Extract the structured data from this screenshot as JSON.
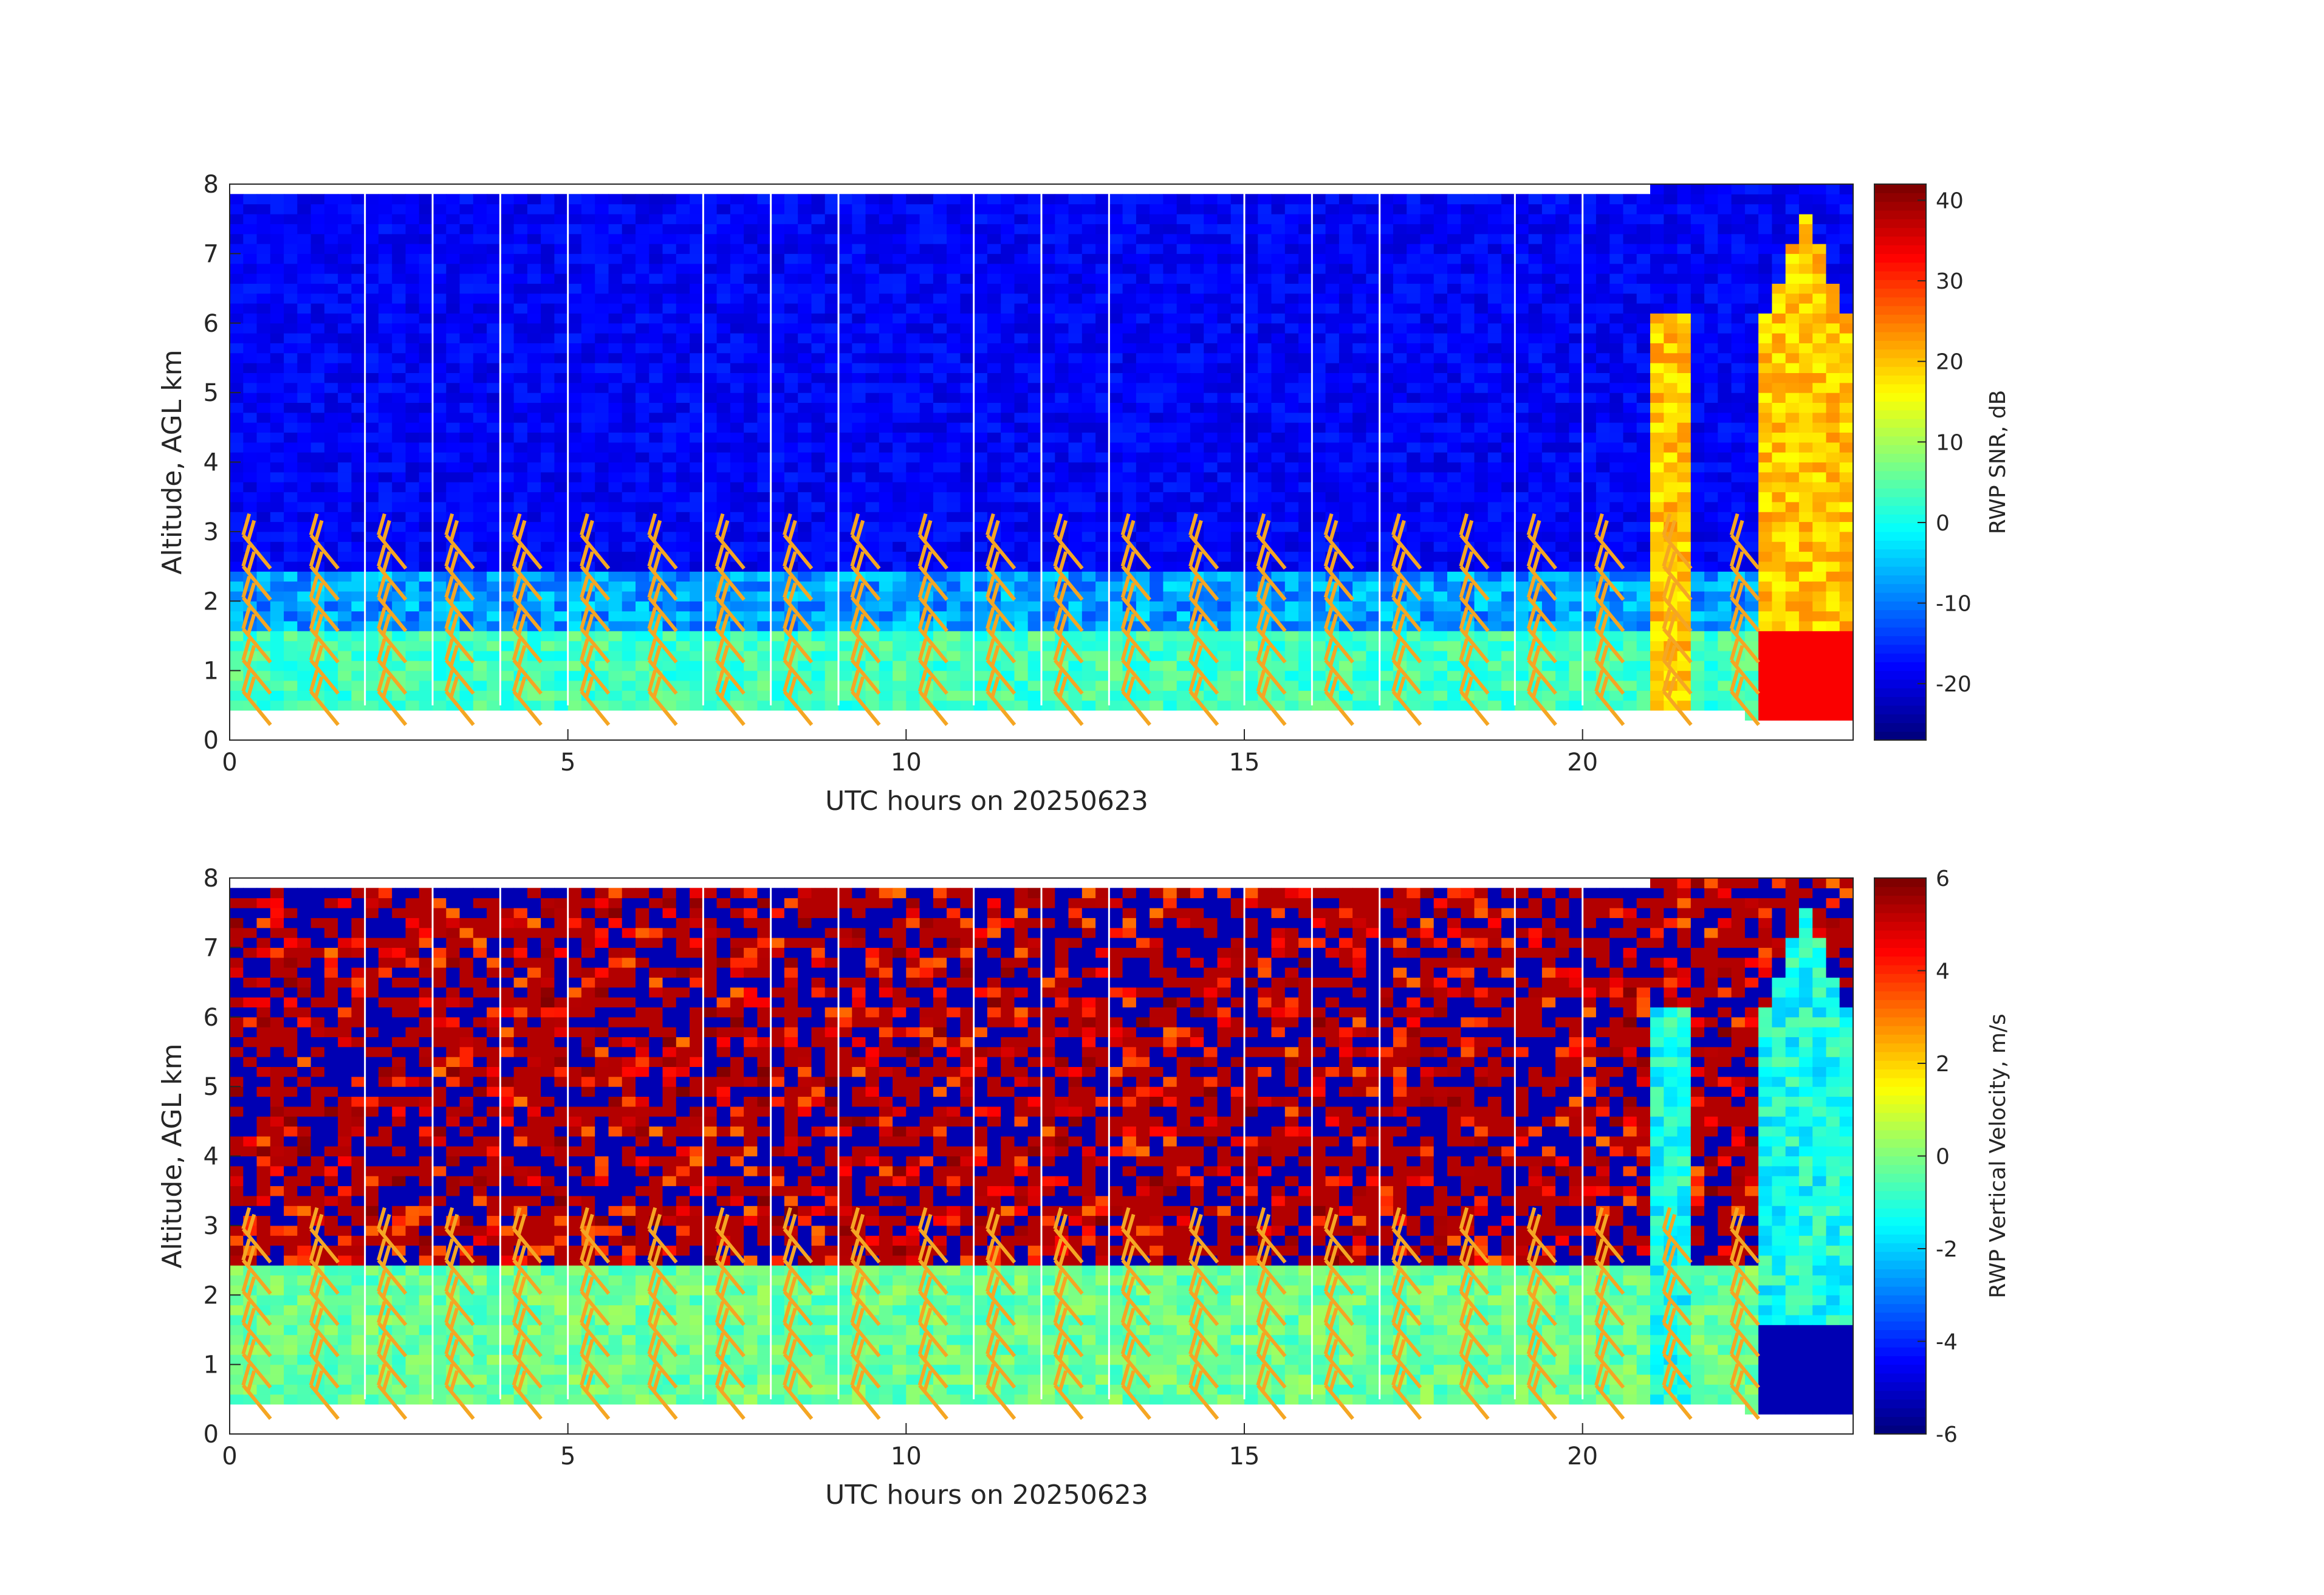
{
  "chart_data": [
    {
      "type": "heatmap",
      "title": "",
      "xlabel": "UTC hours on 20250623",
      "ylabel": "Altitude, AGL km",
      "xlim": [
        0,
        24
      ],
      "ylim": [
        0,
        8
      ],
      "xticks": [
        0,
        5,
        10,
        15,
        20
      ],
      "yticks": [
        0,
        1,
        2,
        3,
        4,
        5,
        6,
        7,
        8
      ],
      "colorbar": {
        "label": "RWP SNR, dB",
        "range": [
          -27,
          42
        ],
        "ticks": [
          -20,
          -10,
          0,
          10,
          20,
          30,
          40
        ],
        "colormap": "jet"
      },
      "data_gap_hours": [
        2,
        3,
        4,
        5,
        7,
        8,
        9,
        11,
        12,
        13,
        15,
        16,
        17,
        19,
        20
      ],
      "wind_barb_hours": [
        0.2,
        1.2,
        2.2,
        3.2,
        4.2,
        5.2,
        6.2,
        7.2,
        8.2,
        9.2,
        10.2,
        11.2,
        12.2,
        13.2,
        14.2,
        15.2,
        16.2,
        17.2,
        18.2,
        19.2,
        20.2,
        21.2,
        22.2
      ],
      "wind_barb_color": "#f5a623",
      "grid": false
    },
    {
      "type": "heatmap",
      "title": "",
      "xlabel": "UTC hours on 20250623",
      "ylabel": "Altitude, AGL km",
      "xlim": [
        0,
        24
      ],
      "ylim": [
        0,
        8
      ],
      "xticks": [
        0,
        5,
        10,
        15,
        20
      ],
      "yticks": [
        0,
        1,
        2,
        3,
        4,
        5,
        6,
        7,
        8
      ],
      "colorbar": {
        "label": "RWP Vertical Velocity, m/s",
        "range": [
          -6,
          6
        ],
        "ticks": [
          -6,
          -4,
          -2,
          0,
          2,
          4,
          6
        ],
        "colormap": "jet"
      },
      "data_gap_hours": [
        2,
        3,
        4,
        5,
        7,
        8,
        9,
        11,
        12,
        13,
        15,
        16,
        17,
        19,
        20
      ],
      "wind_barb_hours": [
        0.2,
        1.2,
        2.2,
        3.2,
        4.2,
        5.2,
        6.2,
        7.2,
        8.2,
        9.2,
        10.2,
        11.2,
        12.2,
        13.2,
        14.2,
        15.2,
        16.2,
        17.2,
        18.2,
        19.2,
        20.2,
        21.2,
        22.2
      ],
      "wind_barb_color": "#f5a623",
      "grid": false
    }
  ]
}
